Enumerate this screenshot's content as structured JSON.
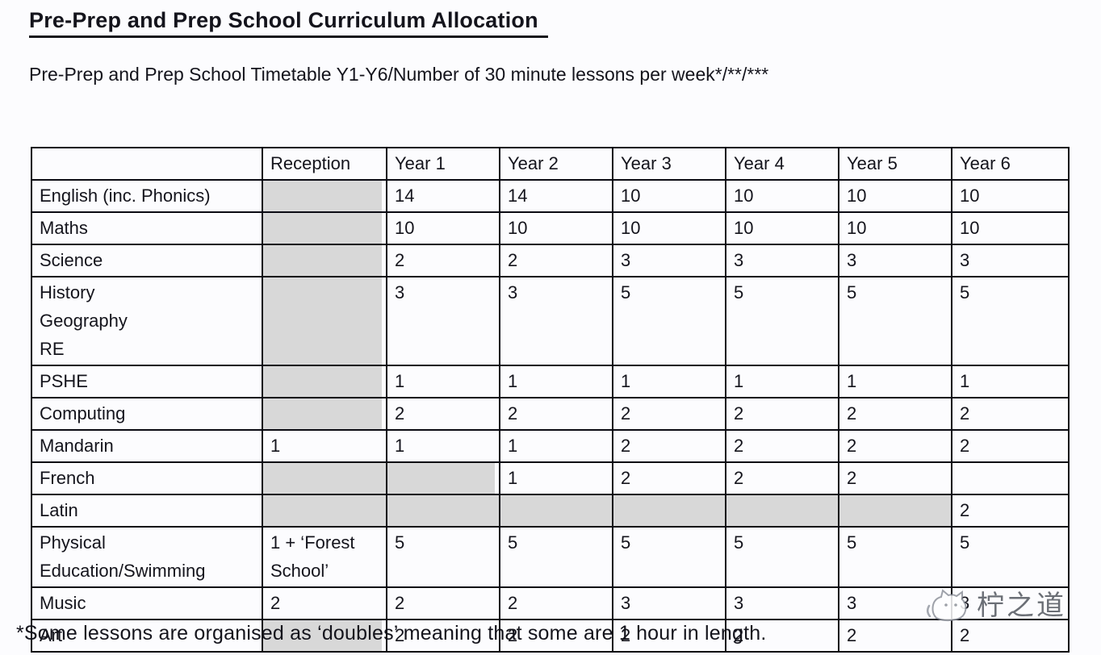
{
  "page": {
    "title": "Pre-Prep and Prep School Curriculum Allocation",
    "subtitle": "Pre-Prep and Prep School Timetable Y1-Y6/Number of 30 minute lessons per week*/**/***",
    "footnote": "*Some lessons are organised as ‘doubles’ meaning that some are 1 hour in length."
  },
  "table": {
    "columns": [
      "",
      "Reception",
      "Year 1",
      "Year 2",
      "Year 3",
      "Year 4",
      "Year 5",
      "Year 6"
    ],
    "rows": [
      {
        "subject": "English (inc. Phonics)",
        "cells": [
          {
            "v": "",
            "shade": "partial"
          },
          {
            "v": "14",
            "shade": "none"
          },
          {
            "v": "14",
            "shade": "none"
          },
          {
            "v": "10",
            "shade": "none"
          },
          {
            "v": "10",
            "shade": "none"
          },
          {
            "v": "10",
            "shade": "none"
          },
          {
            "v": "10",
            "shade": "none"
          }
        ]
      },
      {
        "subject": "Maths",
        "cells": [
          {
            "v": "",
            "shade": "partial"
          },
          {
            "v": "10",
            "shade": "none"
          },
          {
            "v": "10",
            "shade": "none"
          },
          {
            "v": "10",
            "shade": "none"
          },
          {
            "v": "10",
            "shade": "none"
          },
          {
            "v": "10",
            "shade": "none"
          },
          {
            "v": "10",
            "shade": "none"
          }
        ]
      },
      {
        "subject": "Science",
        "cells": [
          {
            "v": "",
            "shade": "partial"
          },
          {
            "v": "2",
            "shade": "none"
          },
          {
            "v": "2",
            "shade": "none"
          },
          {
            "v": "3",
            "shade": "none"
          },
          {
            "v": "3",
            "shade": "none"
          },
          {
            "v": "3",
            "shade": "none"
          },
          {
            "v": "3",
            "shade": "none"
          }
        ]
      },
      {
        "subject": "History\nGeography\nRE",
        "cells": [
          {
            "v": "",
            "shade": "partial"
          },
          {
            "v": "3",
            "shade": "none"
          },
          {
            "v": "3",
            "shade": "none"
          },
          {
            "v": "5",
            "shade": "none"
          },
          {
            "v": "5",
            "shade": "none"
          },
          {
            "v": "5",
            "shade": "none"
          },
          {
            "v": "5",
            "shade": "none"
          }
        ]
      },
      {
        "subject": "PSHE",
        "cells": [
          {
            "v": "",
            "shade": "partial"
          },
          {
            "v": "1",
            "shade": "none"
          },
          {
            "v": "1",
            "shade": "none"
          },
          {
            "v": "1",
            "shade": "none"
          },
          {
            "v": "1",
            "shade": "none"
          },
          {
            "v": "1",
            "shade": "none"
          },
          {
            "v": "1",
            "shade": "none"
          }
        ]
      },
      {
        "subject": "Computing",
        "cells": [
          {
            "v": "",
            "shade": "partial"
          },
          {
            "v": "2",
            "shade": "none"
          },
          {
            "v": "2",
            "shade": "none"
          },
          {
            "v": "2",
            "shade": "none"
          },
          {
            "v": "2",
            "shade": "none"
          },
          {
            "v": "2",
            "shade": "none"
          },
          {
            "v": "2",
            "shade": "none"
          }
        ]
      },
      {
        "subject": "Mandarin",
        "cells": [
          {
            "v": "1",
            "shade": "none"
          },
          {
            "v": "1",
            "shade": "none"
          },
          {
            "v": "1",
            "shade": "none"
          },
          {
            "v": "2",
            "shade": "none"
          },
          {
            "v": "2",
            "shade": "none"
          },
          {
            "v": "2",
            "shade": "none"
          },
          {
            "v": "2",
            "shade": "none"
          }
        ]
      },
      {
        "subject": "French",
        "cells": [
          {
            "v": "",
            "shade": "full"
          },
          {
            "v": "",
            "shade": "partial"
          },
          {
            "v": "1",
            "shade": "none"
          },
          {
            "v": "2",
            "shade": "none"
          },
          {
            "v": "2",
            "shade": "none"
          },
          {
            "v": "2",
            "shade": "none"
          },
          {
            "v": "",
            "shade": "none"
          }
        ]
      },
      {
        "subject": "Latin",
        "cells": [
          {
            "v": "",
            "shade": "full"
          },
          {
            "v": "",
            "shade": "full"
          },
          {
            "v": "",
            "shade": "full"
          },
          {
            "v": "",
            "shade": "full"
          },
          {
            "v": "",
            "shade": "full"
          },
          {
            "v": "",
            "shade": "full"
          },
          {
            "v": "2",
            "shade": "none"
          }
        ]
      },
      {
        "subject": "Physical Education/Swimming",
        "cells": [
          {
            "v": "1 + ‘Forest School’",
            "shade": "none"
          },
          {
            "v": "5",
            "shade": "none"
          },
          {
            "v": "5",
            "shade": "none"
          },
          {
            "v": "5",
            "shade": "none"
          },
          {
            "v": "5",
            "shade": "none"
          },
          {
            "v": "5",
            "shade": "none"
          },
          {
            "v": "5",
            "shade": "none"
          }
        ]
      },
      {
        "subject": "Music",
        "cells": [
          {
            "v": "2",
            "shade": "none"
          },
          {
            "v": "2",
            "shade": "none"
          },
          {
            "v": "2",
            "shade": "none"
          },
          {
            "v": "3",
            "shade": "none"
          },
          {
            "v": "3",
            "shade": "none"
          },
          {
            "v": "3",
            "shade": "none"
          },
          {
            "v": "3",
            "shade": "none"
          }
        ]
      },
      {
        "subject": "Art",
        "cells": [
          {
            "v": "",
            "shade": "partial"
          },
          {
            "v": "2",
            "shade": "none"
          },
          {
            "v": "2",
            "shade": "none"
          },
          {
            "v": "2",
            "shade": "none"
          },
          {
            "v": "2",
            "shade": "none"
          },
          {
            "v": "2",
            "shade": "none"
          },
          {
            "v": "2",
            "shade": "none"
          }
        ]
      }
    ]
  },
  "watermark": {
    "text": "柠之道",
    "icon": "cat-logo-icon"
  },
  "colors": {
    "shade": "#d8d8d8",
    "border": "#0b0b13",
    "text": "#14141c",
    "page_bg": "#fcfcfe",
    "watermark_gray": "#565b63"
  }
}
